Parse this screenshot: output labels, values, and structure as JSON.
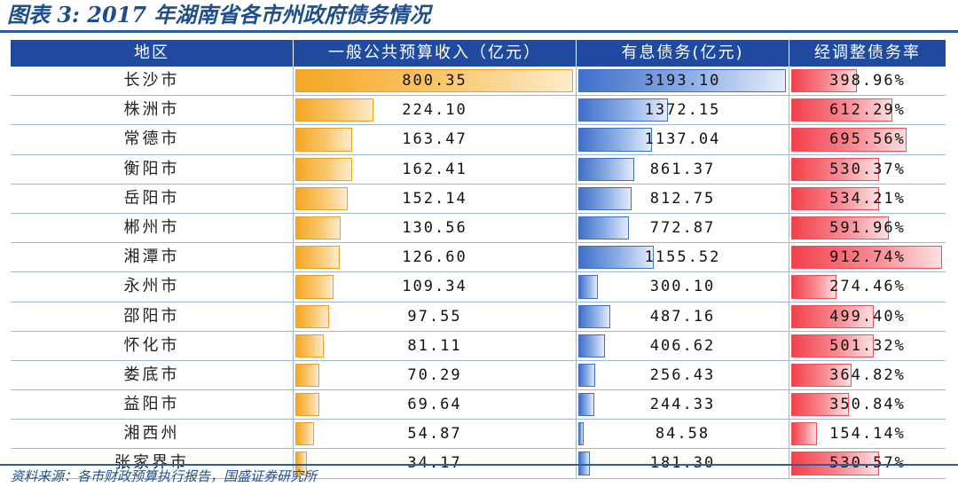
{
  "title": "图表 3:  2017 年湖南省各市州政府债务情况",
  "source": "资料来源：各市财政预算执行报告，国盛证券研究所",
  "colors": {
    "header_bg": "#1f4aa0",
    "revenue_bar": "#f5a623",
    "debt_bar": "#3f6fc8",
    "ratio_bar": "#f2404a",
    "title": "#1f4e8c"
  },
  "headers": [
    "地区",
    "一般公共预算收入（亿元）",
    "有息债务(亿元)",
    "经调整债务率"
  ],
  "chart_data": {
    "type": "table",
    "columns": [
      "地区",
      "一般公共预算收入（亿元）",
      "有息债务(亿元)",
      "经调整债务率"
    ],
    "rows": [
      {
        "region": "长沙市",
        "revenue": "800.35",
        "debt": "3193.10",
        "ratio": "398.96%"
      },
      {
        "region": "株洲市",
        "revenue": "224.10",
        "debt": "1372.15",
        "ratio": "612.29%"
      },
      {
        "region": "常德市",
        "revenue": "163.47",
        "debt": "1137.04",
        "ratio": "695.56%"
      },
      {
        "region": "衡阳市",
        "revenue": "162.41",
        "debt": "861.37",
        "ratio": "530.37%"
      },
      {
        "region": "岳阳市",
        "revenue": "152.14",
        "debt": "812.75",
        "ratio": "534.21%"
      },
      {
        "region": "郴州市",
        "revenue": "130.56",
        "debt": "772.87",
        "ratio": "591.96%"
      },
      {
        "region": "湘潭市",
        "revenue": "126.60",
        "debt": "1155.52",
        "ratio": "912.74%"
      },
      {
        "region": "永州市",
        "revenue": "109.34",
        "debt": "300.10",
        "ratio": "274.46%"
      },
      {
        "region": "邵阳市",
        "revenue": "97.55",
        "debt": "487.16",
        "ratio": "499.40%"
      },
      {
        "region": "怀化市",
        "revenue": "81.11",
        "debt": "406.62",
        "ratio": "501.32%"
      },
      {
        "region": "娄底市",
        "revenue": "70.29",
        "debt": "256.43",
        "ratio": "364.82%"
      },
      {
        "region": "益阳市",
        "revenue": "69.64",
        "debt": "244.33",
        "ratio": "350.84%"
      },
      {
        "region": "湘西州",
        "revenue": "54.87",
        "debt": "84.58",
        "ratio": "154.14%"
      },
      {
        "region": "张家界市",
        "revenue": "34.17",
        "debt": "181.30",
        "ratio": "530.57%"
      }
    ]
  }
}
